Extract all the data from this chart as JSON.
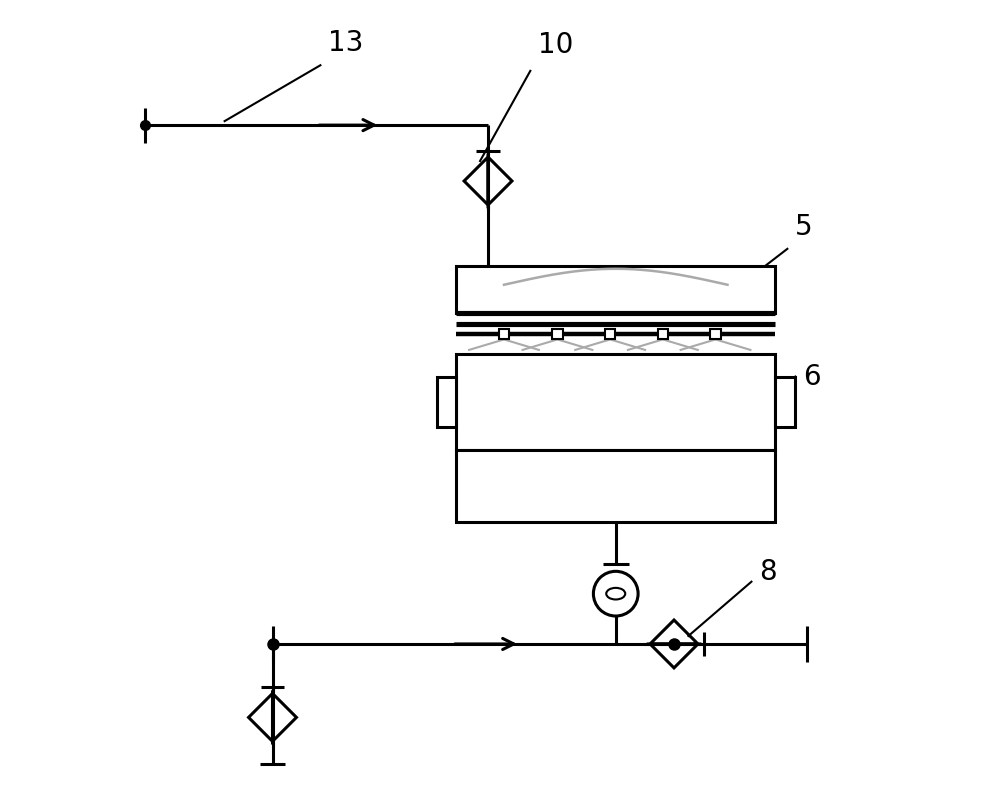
{
  "bg_color": "#ffffff",
  "line_color": "#000000",
  "gray_color": "#aaaaaa",
  "figsize": [
    10.0,
    8.01
  ],
  "dpi": 100
}
